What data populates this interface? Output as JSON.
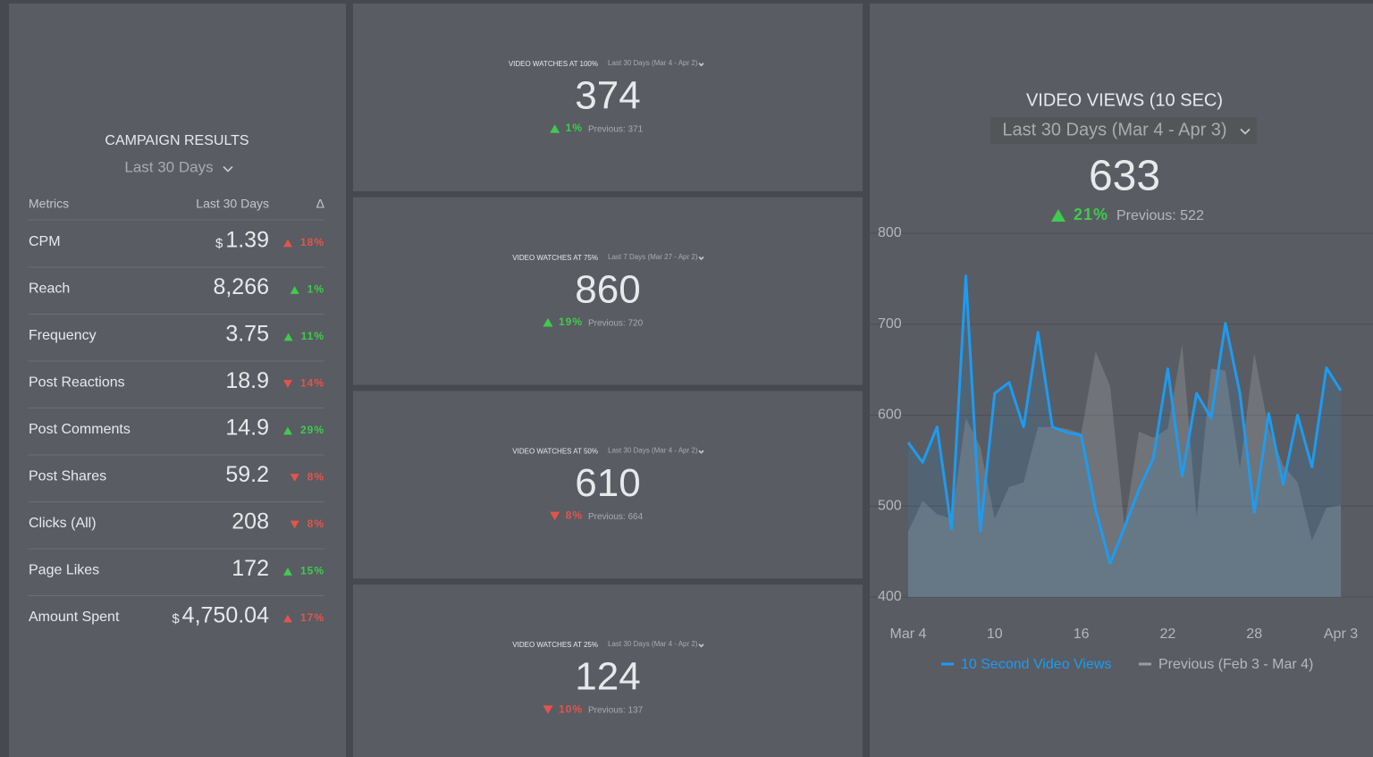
{
  "campaign": {
    "title": "CAMPAIGN RESULTS",
    "range": "Last 30 Days",
    "columns": [
      "Metrics",
      "Last 30 Days",
      "Δ"
    ],
    "rows": [
      {
        "name": "CPM",
        "currency": "$",
        "value": "1.39",
        "change": "18%",
        "trend": "up",
        "color": "#e5534b"
      },
      {
        "name": "Reach",
        "value": "8,266",
        "change": "1%",
        "trend": "up",
        "color": "#3fcb4e"
      },
      {
        "name": "Frequency",
        "value": "3.75",
        "change": "11%",
        "trend": "up",
        "color": "#3fcb4e"
      },
      {
        "name": "Post Reactions",
        "value": "18.9",
        "change": "14%",
        "trend": "down",
        "color": "#e5534b"
      },
      {
        "name": "Post Comments",
        "value": "14.9",
        "change": "29%",
        "trend": "up",
        "color": "#3fcb4e"
      },
      {
        "name": "Post Shares",
        "value": "59.2",
        "change": "8%",
        "trend": "down",
        "color": "#e5534b"
      },
      {
        "name": "Clicks (All)",
        "value": "208",
        "change": "8%",
        "trend": "down",
        "color": "#e5534b"
      },
      {
        "name": "Page Likes",
        "value": "172",
        "change": "15%",
        "trend": "up",
        "color": "#3fcb4e"
      },
      {
        "name": "Amount Spent",
        "currency": "$",
        "value": "4,750.04",
        "change": "17%",
        "trend": "up",
        "color": "#e5534b"
      }
    ]
  },
  "cards": [
    {
      "title": "VIDEO WATCHES AT 100%",
      "range": "Last 30 Days (Mar 4 - Apr 2)",
      "value": "374",
      "change": "1%",
      "trend": "up",
      "color": "#3fcb4e",
      "previous": "Previous: 371"
    },
    {
      "title": "VIDEO WATCHES AT 75%",
      "range": "Last 7 Days (Mar 27 - Apr 2)",
      "value": "860",
      "change": "19%",
      "trend": "up",
      "color": "#3fcb4e",
      "previous": "Previous: 720"
    },
    {
      "title": "VIDEO WATCHES AT 50%",
      "range": "Last 30 Days (Mar 4 - Apr 2)",
      "value": "610",
      "change": "8%",
      "trend": "down",
      "color": "#e5534b",
      "previous": "Previous: 664"
    },
    {
      "title": "VIDEO WATCHES AT 25%",
      "range": "Last 30 Days (Mar 4 - Apr 2)",
      "value": "124",
      "change": "10%",
      "trend": "down",
      "color": "#e5534b",
      "previous": "Previous: 137"
    }
  ],
  "chart_data": {
    "type": "line",
    "title": "VIDEO VIEWS (10 SEC)",
    "subtitle": "Last 30 Days (Mar 4 - Apr 3)",
    "total": "633",
    "change": "21%",
    "trend": "up",
    "change_color": "#3fcb4e",
    "previous": "Previous: 522",
    "categories": [
      "Mar 4",
      null,
      null,
      null,
      null,
      null,
      "10",
      null,
      null,
      null,
      null,
      null,
      "16",
      null,
      null,
      null,
      null,
      null,
      "22",
      null,
      null,
      null,
      null,
      null,
      "28",
      null,
      null,
      null,
      null,
      null,
      "Apr 3"
    ],
    "series": [
      {
        "name": "10 Second Video Views",
        "color": "#1e9bf0",
        "values": [
          570,
          548,
          587,
          475,
          753,
          473,
          624,
          636,
          587,
          691,
          587,
          581,
          578,
          496,
          437,
          477,
          518,
          553,
          651,
          533,
          624,
          597,
          701,
          624,
          493,
          602,
          524,
          600,
          543,
          652,
          627
        ]
      },
      {
        "name": "Previous (Feb 3 - Mar 4)",
        "color": "#9a9da3",
        "values": [
          472,
          506,
          491,
          486,
          597,
          565,
          486,
          521,
          526,
          587,
          587,
          585,
          580,
          670,
          632,
          477,
          582,
          575,
          585,
          678,
          488,
          651,
          649,
          541,
          668,
          585,
          545,
          526,
          462,
          498,
          501
        ]
      }
    ],
    "ylim": [
      400,
      800
    ],
    "yticks": [
      400,
      500,
      600,
      700,
      800
    ],
    "grid": true
  }
}
